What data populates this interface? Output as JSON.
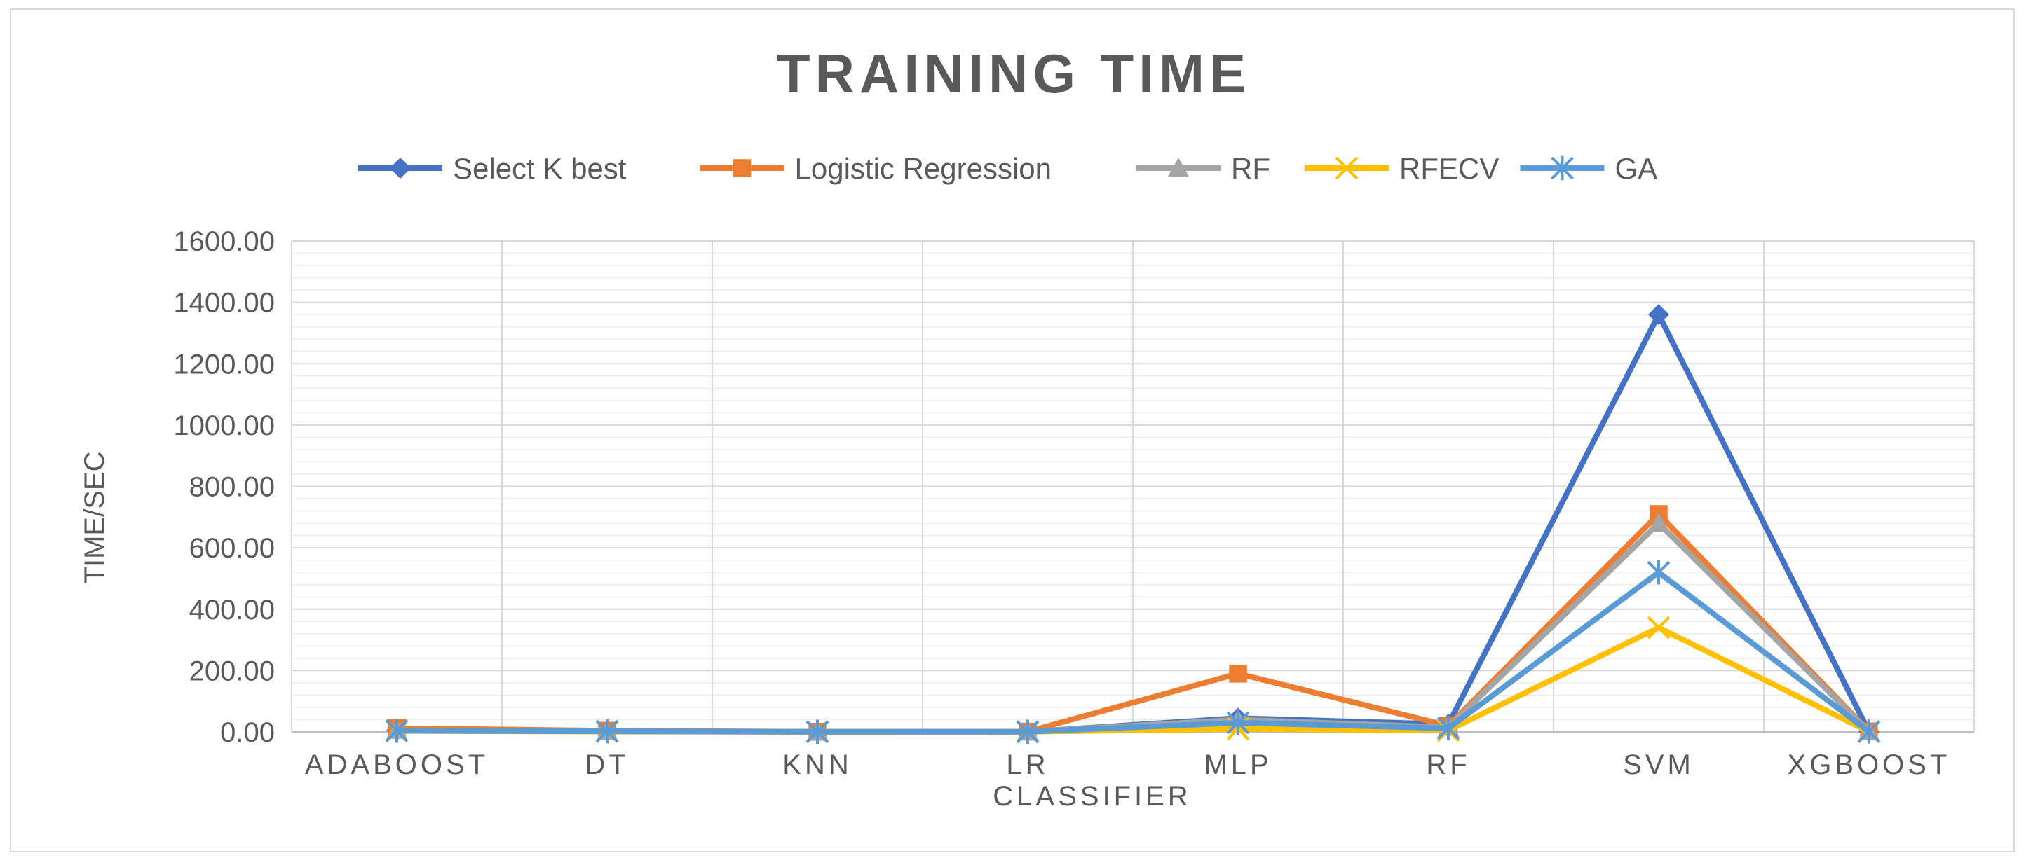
{
  "chart_data": {
    "type": "line",
    "title": "TRAINING TIME",
    "xlabel": "CLASSIFIER",
    "ylabel": "TIME/SEC",
    "ylim": [
      0,
      1600
    ],
    "y_ticks": [
      "0.00",
      "200.00",
      "400.00",
      "600.00",
      "800.00",
      "1000.00",
      "1200.00",
      "1400.00",
      "1600.00"
    ],
    "y_tick_values": [
      0,
      200,
      400,
      600,
      800,
      1000,
      1200,
      1400,
      1600
    ],
    "categories": [
      "ADABOOST",
      "DT",
      "KNN",
      "LR",
      "MLP",
      "RF",
      "SVM",
      "XGBOOST"
    ],
    "legend_position": "top",
    "grid": true,
    "series": [
      {
        "name": "Select K best",
        "color": "#4472C4",
        "marker": "diamond",
        "values": [
          5,
          2,
          0.5,
          0.5,
          45,
          25,
          1360,
          1
        ]
      },
      {
        "name": "Logistic Regression",
        "color": "#ED7D31",
        "marker": "square",
        "values": [
          12,
          4,
          0.5,
          1,
          190,
          20,
          710,
          2
        ]
      },
      {
        "name": "RF",
        "color": "#A5A5A5",
        "marker": "triangle",
        "values": [
          5,
          2,
          0.5,
          0.5,
          40,
          15,
          680,
          1
        ]
      },
      {
        "name": "RFECV",
        "color": "#FFC000",
        "marker": "x",
        "values": [
          3,
          1,
          0.5,
          0.5,
          10,
          5,
          340,
          1
        ]
      },
      {
        "name": "GA",
        "color": "#5B9BD5",
        "marker": "star",
        "values": [
          4,
          2,
          0.5,
          0.5,
          30,
          12,
          520,
          1
        ]
      }
    ]
  }
}
